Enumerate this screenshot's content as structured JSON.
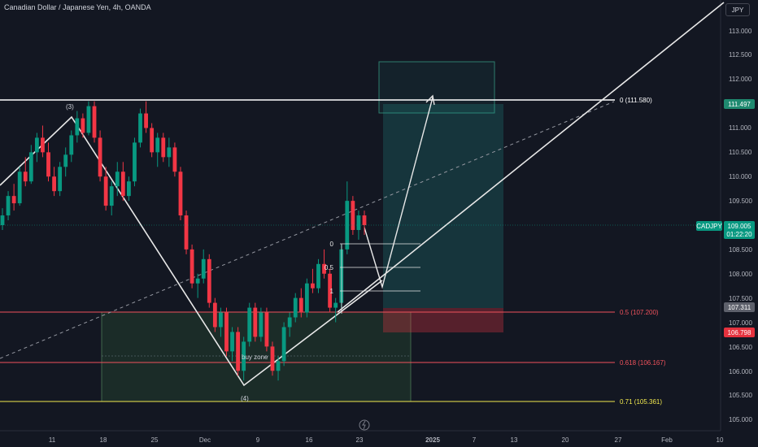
{
  "header": {
    "symbol_title": "Canadian Dollar / Japanese Yen, 4h, OANDA",
    "currency_badge": "JPY"
  },
  "chart_data": {
    "type": "candlestick",
    "symbol": "CADJPY",
    "interval": "4h",
    "price_axis": {
      "ticks": [
        "113.000",
        "112.500",
        "112.000",
        "111.500",
        "111.000",
        "110.500",
        "110.000",
        "109.500",
        "109.000",
        "108.500",
        "108.000",
        "107.500",
        "107.000",
        "106.500",
        "106.000",
        "105.500",
        "105.000"
      ],
      "range": [
        104.85,
        113.45
      ]
    },
    "time_axis": {
      "ticks": [
        "11",
        "18",
        "25",
        "Dec",
        "9",
        "16",
        "23",
        "2025",
        "7",
        "13",
        "20",
        "27",
        "Feb",
        "10"
      ]
    },
    "price_tags": [
      {
        "label": "111.497",
        "color": "#1f8a70"
      },
      {
        "symbol": "CADJPY",
        "price": "109.005",
        "countdown": "01:22:20",
        "color": "#089981"
      },
      {
        "label": "107.311",
        "color": "#5d606b"
      },
      {
        "label": "106.798",
        "color": "#e5323e"
      }
    ],
    "horizontal_levels": [
      {
        "label": "0 (111.580)",
        "price": 111.58,
        "color": "#ffffff"
      },
      {
        "label": "0.5 (107.200)",
        "price": 107.2,
        "color": "#f0525c"
      },
      {
        "label": "0.618 (106.167)",
        "price": 106.167,
        "color": "#f0525c"
      },
      {
        "label": "0.71 (105.361)",
        "price": 105.361,
        "color": "#f2e94e"
      }
    ],
    "fib_mini_levels": [
      "0",
      "0.5",
      "1"
    ],
    "annotations": [
      "(3)",
      "(4)",
      "buy zone"
    ],
    "candles": [
      {
        "t": 0,
        "o": 109.0,
        "h": 109.35,
        "l": 108.9,
        "c": 109.2
      },
      {
        "t": 1,
        "o": 109.2,
        "h": 109.7,
        "l": 109.1,
        "c": 109.6
      },
      {
        "t": 2,
        "o": 109.6,
        "h": 109.85,
        "l": 109.3,
        "c": 109.45
      },
      {
        "t": 3,
        "o": 109.45,
        "h": 110.2,
        "l": 109.4,
        "c": 110.1
      },
      {
        "t": 4,
        "o": 110.1,
        "h": 110.4,
        "l": 109.8,
        "c": 109.9
      },
      {
        "t": 5,
        "o": 109.9,
        "h": 110.65,
        "l": 109.85,
        "c": 110.5
      },
      {
        "t": 6,
        "o": 110.5,
        "h": 110.9,
        "l": 110.3,
        "c": 110.8
      },
      {
        "t": 7,
        "o": 110.8,
        "h": 111.05,
        "l": 110.4,
        "c": 110.5
      },
      {
        "t": 8,
        "o": 110.5,
        "h": 110.7,
        "l": 109.9,
        "c": 110.0
      },
      {
        "t": 9,
        "o": 110.0,
        "h": 110.2,
        "l": 109.6,
        "c": 109.7
      },
      {
        "t": 10,
        "o": 109.7,
        "h": 110.3,
        "l": 109.6,
        "c": 110.2
      },
      {
        "t": 11,
        "o": 110.2,
        "h": 110.6,
        "l": 110.0,
        "c": 110.45
      },
      {
        "t": 12,
        "o": 110.45,
        "h": 110.95,
        "l": 110.3,
        "c": 110.85
      },
      {
        "t": 13,
        "o": 110.85,
        "h": 111.35,
        "l": 110.7,
        "c": 111.2
      },
      {
        "t": 14,
        "o": 111.2,
        "h": 111.3,
        "l": 110.8,
        "c": 110.9
      },
      {
        "t": 15,
        "o": 110.9,
        "h": 111.55,
        "l": 110.85,
        "c": 111.45
      },
      {
        "t": 16,
        "o": 111.45,
        "h": 111.55,
        "l": 110.7,
        "c": 110.8
      },
      {
        "t": 17,
        "o": 110.8,
        "h": 110.95,
        "l": 109.9,
        "c": 110.0
      },
      {
        "t": 18,
        "o": 110.0,
        "h": 110.2,
        "l": 109.3,
        "c": 109.4
      },
      {
        "t": 19,
        "o": 109.4,
        "h": 109.9,
        "l": 109.2,
        "c": 109.8
      },
      {
        "t": 20,
        "o": 109.8,
        "h": 110.3,
        "l": 109.6,
        "c": 110.1
      },
      {
        "t": 21,
        "o": 110.1,
        "h": 110.3,
        "l": 109.5,
        "c": 109.6
      },
      {
        "t": 22,
        "o": 109.6,
        "h": 110.0,
        "l": 109.5,
        "c": 109.9
      },
      {
        "t": 23,
        "o": 109.9,
        "h": 110.8,
        "l": 109.8,
        "c": 110.7
      },
      {
        "t": 24,
        "o": 110.7,
        "h": 111.4,
        "l": 110.6,
        "c": 111.3
      },
      {
        "t": 25,
        "o": 111.3,
        "h": 111.55,
        "l": 110.9,
        "c": 111.0
      },
      {
        "t": 26,
        "o": 111.0,
        "h": 111.1,
        "l": 110.4,
        "c": 110.5
      },
      {
        "t": 27,
        "o": 110.5,
        "h": 110.9,
        "l": 110.2,
        "c": 110.8
      },
      {
        "t": 28,
        "o": 110.8,
        "h": 110.9,
        "l": 110.3,
        "c": 110.4
      },
      {
        "t": 29,
        "o": 110.4,
        "h": 110.8,
        "l": 110.2,
        "c": 110.6
      },
      {
        "t": 30,
        "o": 110.6,
        "h": 110.7,
        "l": 110.0,
        "c": 110.1
      },
      {
        "t": 31,
        "o": 110.1,
        "h": 110.2,
        "l": 109.1,
        "c": 109.2
      },
      {
        "t": 32,
        "o": 109.2,
        "h": 109.3,
        "l": 108.4,
        "c": 108.5
      },
      {
        "t": 33,
        "o": 108.5,
        "h": 108.6,
        "l": 107.7,
        "c": 107.8
      },
      {
        "t": 34,
        "o": 107.8,
        "h": 108.0,
        "l": 107.5,
        "c": 107.9
      },
      {
        "t": 35,
        "o": 107.9,
        "h": 108.5,
        "l": 107.8,
        "c": 108.3
      },
      {
        "t": 36,
        "o": 108.3,
        "h": 108.4,
        "l": 107.3,
        "c": 107.4
      },
      {
        "t": 37,
        "o": 107.4,
        "h": 107.5,
        "l": 106.8,
        "c": 106.9
      },
      {
        "t": 38,
        "o": 106.9,
        "h": 107.3,
        "l": 106.7,
        "c": 107.2
      },
      {
        "t": 39,
        "o": 107.2,
        "h": 107.3,
        "l": 106.3,
        "c": 106.4
      },
      {
        "t": 40,
        "o": 106.4,
        "h": 106.9,
        "l": 106.2,
        "c": 106.8
      },
      {
        "t": 41,
        "o": 106.8,
        "h": 106.9,
        "l": 105.9,
        "c": 106.0
      },
      {
        "t": 42,
        "o": 106.0,
        "h": 106.7,
        "l": 105.8,
        "c": 106.6
      },
      {
        "t": 43,
        "o": 106.6,
        "h": 107.4,
        "l": 106.5,
        "c": 107.3
      },
      {
        "t": 44,
        "o": 107.3,
        "h": 107.4,
        "l": 106.6,
        "c": 106.7
      },
      {
        "t": 45,
        "o": 106.7,
        "h": 107.3,
        "l": 106.6,
        "c": 107.2
      },
      {
        "t": 46,
        "o": 107.2,
        "h": 107.3,
        "l": 106.4,
        "c": 106.5
      },
      {
        "t": 47,
        "o": 106.5,
        "h": 106.6,
        "l": 105.9,
        "c": 106.0
      },
      {
        "t": 48,
        "o": 106.0,
        "h": 106.3,
        "l": 105.8,
        "c": 106.2
      },
      {
        "t": 49,
        "o": 106.2,
        "h": 107.0,
        "l": 106.1,
        "c": 106.9
      },
      {
        "t": 50,
        "o": 106.9,
        "h": 107.2,
        "l": 106.7,
        "c": 107.1
      },
      {
        "t": 51,
        "o": 107.1,
        "h": 107.6,
        "l": 107.0,
        "c": 107.5
      },
      {
        "t": 52,
        "o": 107.5,
        "h": 107.7,
        "l": 107.1,
        "c": 107.2
      },
      {
        "t": 53,
        "o": 107.2,
        "h": 107.9,
        "l": 107.1,
        "c": 107.8
      },
      {
        "t": 54,
        "o": 107.8,
        "h": 108.1,
        "l": 107.6,
        "c": 107.7
      },
      {
        "t": 55,
        "o": 107.7,
        "h": 108.3,
        "l": 107.6,
        "c": 108.2
      },
      {
        "t": 56,
        "o": 108.2,
        "h": 108.5,
        "l": 107.9,
        "c": 108.0
      },
      {
        "t": 57,
        "o": 108.0,
        "h": 108.1,
        "l": 107.2,
        "c": 107.3
      },
      {
        "t": 58,
        "o": 107.3,
        "h": 107.5,
        "l": 107.0,
        "c": 107.4
      },
      {
        "t": 59,
        "o": 107.4,
        "h": 108.6,
        "l": 107.3,
        "c": 108.5
      },
      {
        "t": 60,
        "o": 108.5,
        "h": 109.9,
        "l": 108.4,
        "c": 109.5
      },
      {
        "t": 61,
        "o": 109.5,
        "h": 109.6,
        "l": 108.8,
        "c": 108.9
      },
      {
        "t": 62,
        "o": 108.9,
        "h": 109.3,
        "l": 108.7,
        "c": 109.2
      },
      {
        "t": 63,
        "o": 109.2,
        "h": 109.3,
        "l": 108.8,
        "c": 109.0
      }
    ],
    "xlabel": "",
    "ylabel": ""
  }
}
